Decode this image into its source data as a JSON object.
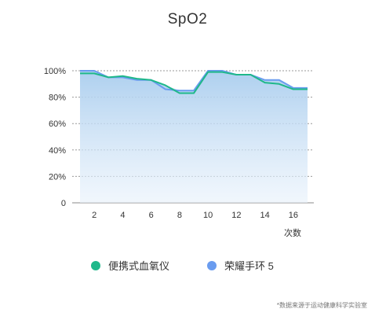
{
  "chart_data": {
    "type": "area",
    "title": "SpO2",
    "xlabel": "次数",
    "ylabel": "",
    "x": [
      1,
      2,
      3,
      4,
      5,
      6,
      7,
      8,
      9,
      10,
      11,
      12,
      13,
      14,
      15,
      16,
      17
    ],
    "x_ticks": [
      2,
      4,
      6,
      8,
      10,
      12,
      14,
      16
    ],
    "ylim": [
      0,
      100
    ],
    "y_ticks": [
      {
        "value": 0,
        "label": "0"
      },
      {
        "value": 20,
        "label": "20%"
      },
      {
        "value": 40,
        "label": "40%"
      },
      {
        "value": 60,
        "label": "60%"
      },
      {
        "value": 80,
        "label": "80%"
      },
      {
        "value": 100,
        "label": "100%"
      }
    ],
    "grid": true,
    "series": [
      {
        "name": "便携式血氧仪",
        "color": "#1fb88a",
        "values": [
          98,
          98,
          95,
          96,
          94,
          93,
          89,
          83,
          83,
          99,
          99,
          97,
          97,
          91,
          90,
          86,
          86
        ]
      },
      {
        "name": "荣耀手环 5",
        "color": "#6a9cef",
        "values": [
          100,
          100,
          95,
          95,
          93,
          93,
          86,
          85,
          85,
          100,
          100,
          97,
          97,
          93,
          93,
          87,
          87
        ]
      }
    ],
    "legend_position": "bottom"
  },
  "footnote": "*数据来源于运动健康科学实验室"
}
